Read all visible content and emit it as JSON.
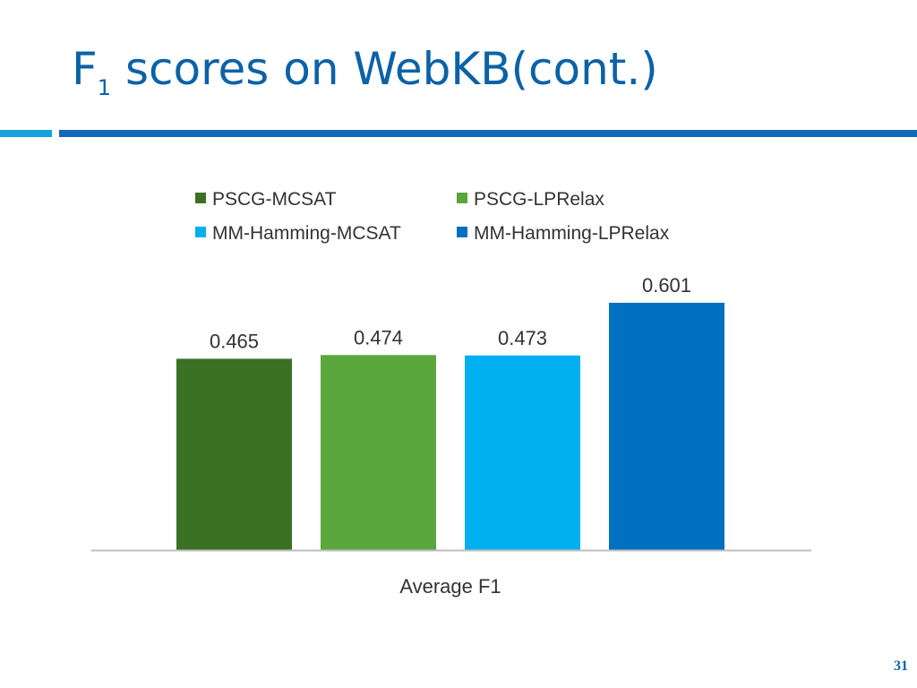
{
  "slide": {
    "title_main": "F",
    "title_subscript": "1",
    "title_rest": " scores on WebKB(cont.)",
    "page_number": "31"
  },
  "colors": {
    "title": "#0b62a8",
    "rule_short": "#15a2dc",
    "rule_long": "#1468b8",
    "axis": "#bfbfbf"
  },
  "chart_data": {
    "type": "bar",
    "categories": [
      "Average F1"
    ],
    "series": [
      {
        "name": "PSCG-MCSAT",
        "values": [
          0.465
        ],
        "labels": [
          "0.465"
        ],
        "color": "#3b7124"
      },
      {
        "name": "PSCG-LPRelax",
        "values": [
          0.474
        ],
        "labels": [
          "0.474"
        ],
        "color": "#5aa73b"
      },
      {
        "name": "MM-Hamming-MCSAT",
        "values": [
          0.473
        ],
        "labels": [
          "0.473"
        ],
        "color": "#00b0f0"
      },
      {
        "name": "MM-Hamming-LPRelax",
        "values": [
          0.601
        ],
        "labels": [
          "0.601"
        ],
        "color": "#0070c0"
      }
    ],
    "ylim": [
      0,
      0.601
    ],
    "legend_position": "top",
    "grid": false,
    "y_axis_visible": false,
    "data_labels": true
  }
}
